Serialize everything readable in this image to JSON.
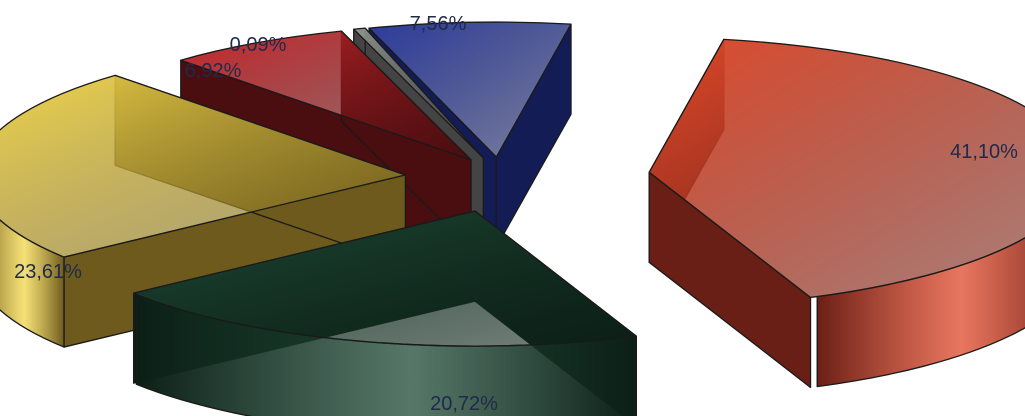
{
  "chart_data": {
    "type": "pie",
    "style": "3d-exploded",
    "title": "",
    "legend": "none",
    "slices": [
      {
        "value": 41.1,
        "label": "41,10%",
        "color": "#e0492a"
      },
      {
        "value": 20.72,
        "label": "20,72%",
        "color": "#1e4a36"
      },
      {
        "value": 23.61,
        "label": "23,61%",
        "color": "#f2d64a"
      },
      {
        "value": 6.92,
        "label": "6,92%",
        "color": "#c8262a"
      },
      {
        "value": 0.09,
        "label": "0,09%",
        "color": "#8a8f8a"
      },
      {
        "value": 7.56,
        "label": "7,56%",
        "color": "#2c3c9c"
      }
    ]
  }
}
